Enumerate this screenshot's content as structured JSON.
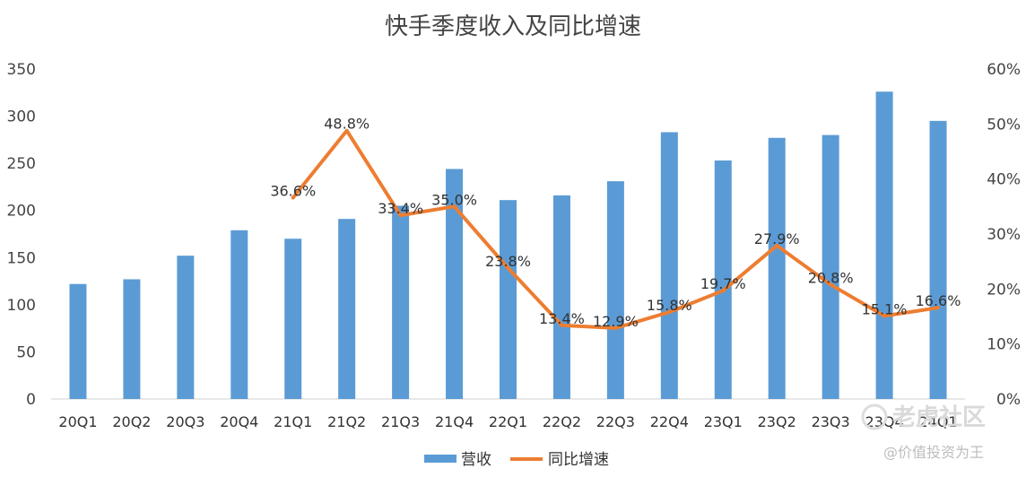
{
  "chart_data": {
    "type": "bar",
    "title": "快手季度收入及同比增速",
    "categories": [
      "20Q1",
      "20Q2",
      "20Q3",
      "20Q4",
      "21Q1",
      "21Q2",
      "21Q3",
      "21Q4",
      "22Q1",
      "22Q2",
      "22Q3",
      "22Q4",
      "23Q1",
      "23Q2",
      "23Q3",
      "23Q4",
      "24Q1"
    ],
    "series": [
      {
        "name": "营收",
        "type": "bar",
        "axis": "left",
        "color": "#5b9bd5",
        "values": [
          122,
          127,
          152,
          179,
          170,
          191,
          205,
          244,
          211,
          216,
          231,
          283,
          253,
          277,
          280,
          326,
          295
        ]
      },
      {
        "name": "同比增速",
        "type": "line",
        "axis": "right",
        "color": "#ed7d31",
        "values": [
          null,
          null,
          null,
          null,
          36.6,
          48.8,
          33.4,
          35.0,
          23.8,
          13.4,
          12.9,
          15.8,
          19.7,
          27.9,
          20.8,
          15.1,
          16.6
        ],
        "labels": [
          "",
          "",
          "",
          "",
          "36.6%",
          "48.8%",
          "33.4%",
          "35.0%",
          "23.8%",
          "13.4%",
          "12.9%",
          "15.8%",
          "19.7%",
          "27.9%",
          "20.8%",
          "15.1%",
          "16.6%"
        ]
      }
    ],
    "y_left": {
      "ylim": [
        0,
        350
      ],
      "ticks": [
        "0",
        "50",
        "100",
        "150",
        "200",
        "250",
        "300",
        "350"
      ]
    },
    "y_right": {
      "ylim": [
        0,
        60
      ],
      "ticks": [
        "0%",
        "10%",
        "20%",
        "30%",
        "40%",
        "50%",
        "60%"
      ]
    },
    "legend_position": "bottom",
    "grid": false
  },
  "watermark": {
    "line1": "老虎社区",
    "line2": "@价值投资为王"
  }
}
